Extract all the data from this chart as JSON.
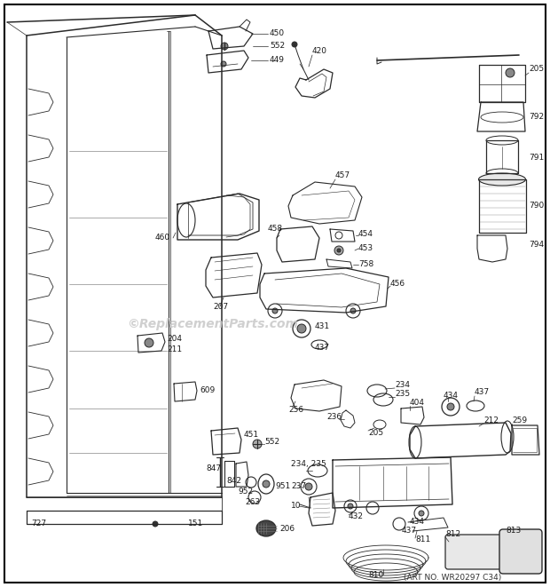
{
  "background_color": "#ffffff",
  "border_color": "#000000",
  "watermark_text": "©ReplacementParts.com",
  "watermark_color": "#c8c8c8",
  "bottom_text": "(ART NO. WR20297 C34)",
  "fig_width": 6.2,
  "fig_height": 6.61,
  "dpi": 100,
  "line_color": "#2a2a2a",
  "label_color": "#1a1a1a",
  "label_fontsize": 6.5,
  "leader_lw": 0.5,
  "part_lw": 0.7,
  "cabinet_lw": 1.1
}
